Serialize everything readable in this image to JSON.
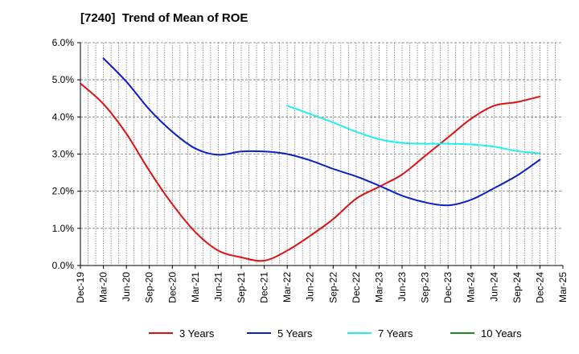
{
  "chart_data": {
    "type": "line",
    "title": "[7240]  Trend of Mean of ROE",
    "xlabel": "",
    "ylabel": "",
    "categories": [
      "Dec-19",
      "Mar-20",
      "Jun-20",
      "Sep-20",
      "Dec-20",
      "Mar-21",
      "Jun-21",
      "Sep-21",
      "Dec-21",
      "Mar-22",
      "Jun-22",
      "Sep-22",
      "Dec-22",
      "Mar-23",
      "Jun-23",
      "Sep-23",
      "Dec-23",
      "Mar-24",
      "Jun-24",
      "Sep-24",
      "Dec-24",
      "Mar-25"
    ],
    "ylim": [
      0,
      6
    ],
    "yticks": [
      "0.0%",
      "1.0%",
      "2.0%",
      "3.0%",
      "4.0%",
      "5.0%",
      "6.0%"
    ],
    "grid": true,
    "legend_position": "bottom",
    "series": [
      {
        "name": "3 Years",
        "color": "#dd1111",
        "values": [
          4.9,
          4.35,
          3.55,
          2.55,
          1.65,
          0.9,
          0.4,
          0.22,
          0.13,
          0.4,
          0.8,
          1.25,
          1.8,
          2.12,
          2.45,
          2.95,
          3.45,
          3.95,
          4.3,
          4.4,
          4.55,
          null
        ]
      },
      {
        "name": "5 Years",
        "color": "#0a1fc8",
        "values": [
          null,
          5.58,
          4.95,
          4.2,
          3.6,
          3.15,
          2.98,
          3.07,
          3.07,
          3.0,
          2.83,
          2.6,
          2.4,
          2.15,
          1.88,
          1.7,
          1.62,
          1.77,
          2.08,
          2.42,
          2.85,
          null
        ]
      },
      {
        "name": "7 Years",
        "color": "#22eeee",
        "values": [
          null,
          null,
          null,
          null,
          null,
          null,
          null,
          null,
          null,
          4.3,
          4.08,
          3.85,
          3.6,
          3.4,
          3.3,
          3.28,
          3.28,
          3.26,
          3.2,
          3.08,
          3.02,
          null
        ]
      },
      {
        "name": "10 Years",
        "color": "#1a8c1a",
        "values": [
          null,
          null,
          null,
          null,
          null,
          null,
          null,
          null,
          null,
          null,
          null,
          null,
          null,
          null,
          null,
          null,
          null,
          null,
          null,
          null,
          null,
          null
        ]
      }
    ]
  }
}
